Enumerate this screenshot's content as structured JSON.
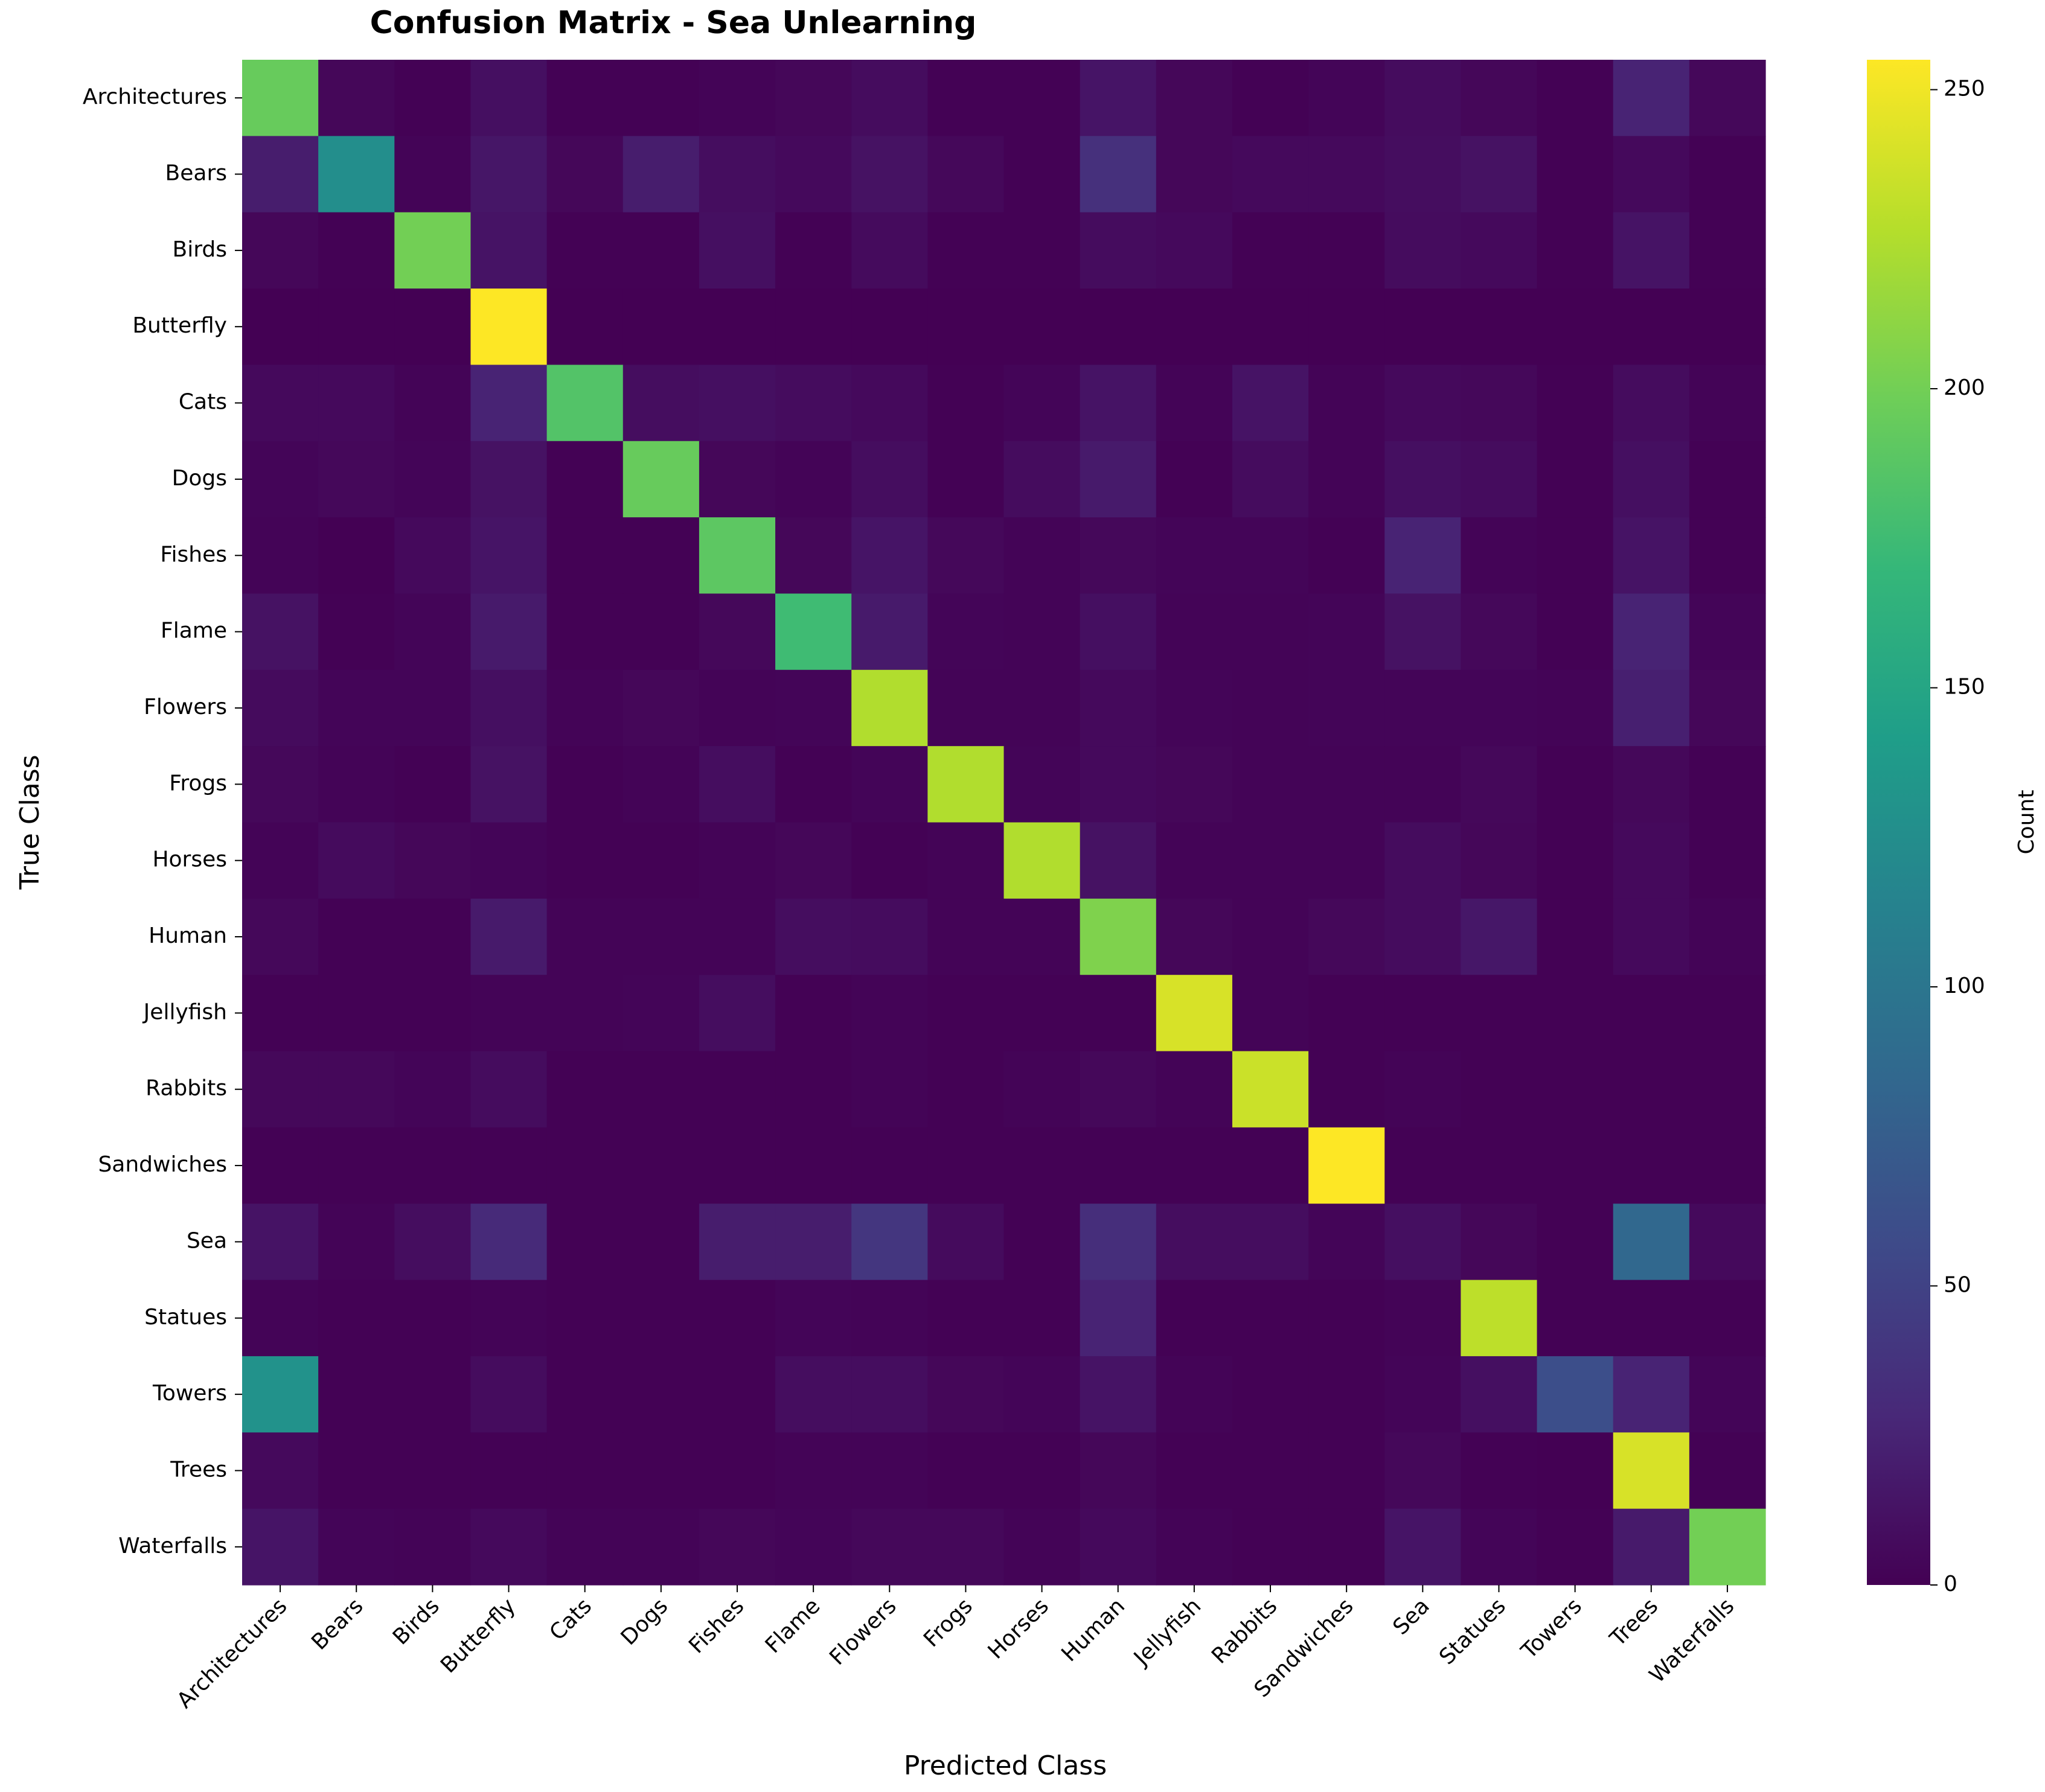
{
  "chart_data": {
    "type": "heatmap",
    "title": "Confusion Matrix - Sea Unlearning",
    "xlabel": "Predicted Class",
    "ylabel": "True Class",
    "colorbar": {
      "label": "Count",
      "range": [
        0,
        255
      ],
      "ticks": [
        "0",
        "50",
        "100",
        "150",
        "200",
        "250"
      ],
      "tick_values": [
        0,
        50,
        100,
        150,
        200,
        250
      ],
      "colormap": "viridis"
    },
    "x_categories": [
      "Architectures",
      "Bears",
      "Birds",
      "Butterfly",
      "Cats",
      "Dogs",
      "Fishes",
      "Flame",
      "Flowers",
      "Frogs",
      "Horses",
      "Human",
      "Jellyfish",
      "Rabbits",
      "Sandwiches",
      "Sea",
      "Statues",
      "Towers",
      "Trees",
      "Waterfalls"
    ],
    "y_categories": [
      "Architectures",
      "Bears",
      "Birds",
      "Butterfly",
      "Cats",
      "Dogs",
      "Fishes",
      "Flame",
      "Flowers",
      "Frogs",
      "Horses",
      "Human",
      "Jellyfish",
      "Rabbits",
      "Sandwiches",
      "Sea",
      "Statues",
      "Towers",
      "Trees",
      "Waterfalls"
    ],
    "matrix": [
      [
        195,
        4,
        1,
        10,
        1,
        1,
        2,
        4,
        8,
        1,
        1,
        14,
        4,
        1,
        3,
        8,
        4,
        1,
        25,
        5
      ],
      [
        20,
        125,
        2,
        15,
        4,
        20,
        9,
        6,
        12,
        5,
        1,
        35,
        4,
        6,
        6,
        9,
        12,
        1,
        6,
        1
      ],
      [
        4,
        1,
        200,
        13,
        1,
        1,
        10,
        1,
        7,
        1,
        1,
        8,
        6,
        1,
        1,
        8,
        6,
        1,
        13,
        1
      ],
      [
        0,
        0,
        0,
        255,
        0,
        0,
        0,
        0,
        0,
        0,
        0,
        0,
        0,
        0,
        0,
        0,
        0,
        0,
        0,
        0
      ],
      [
        6,
        6,
        2,
        25,
        185,
        9,
        10,
        8,
        6,
        1,
        3,
        13,
        2,
        13,
        2,
        6,
        5,
        1,
        8,
        2
      ],
      [
        3,
        5,
        3,
        12,
        1,
        195,
        4,
        2,
        9,
        1,
        8,
        18,
        1,
        8,
        2,
        10,
        8,
        1,
        10,
        1
      ],
      [
        2,
        0,
        6,
        14,
        1,
        1,
        190,
        4,
        14,
        5,
        2,
        5,
        3,
        3,
        1,
        25,
        2,
        1,
        13,
        1
      ],
      [
        12,
        1,
        3,
        18,
        1,
        1,
        5,
        175,
        18,
        3,
        2,
        10,
        2,
        2,
        3,
        12,
        5,
        1,
        25,
        3
      ],
      [
        7,
        3,
        3,
        10,
        2,
        4,
        2,
        3,
        225,
        2,
        2,
        6,
        3,
        2,
        3,
        3,
        3,
        2,
        22,
        4
      ],
      [
        5,
        2,
        1,
        12,
        1,
        2,
        9,
        1,
        3,
        225,
        3,
        6,
        4,
        2,
        2,
        2,
        5,
        1,
        5,
        1
      ],
      [
        2,
        7,
        4,
        3,
        1,
        1,
        2,
        4,
        1,
        2,
        225,
        12,
        2,
        2,
        2,
        8,
        4,
        1,
        6,
        1
      ],
      [
        5,
        1,
        1,
        18,
        2,
        2,
        2,
        9,
        8,
        2,
        2,
        205,
        4,
        2,
        5,
        8,
        16,
        1,
        6,
        2
      ],
      [
        1,
        1,
        1,
        2,
        2,
        3,
        9,
        1,
        2,
        1,
        1,
        1,
        240,
        2,
        1,
        1,
        1,
        1,
        1,
        1
      ],
      [
        5,
        5,
        3,
        8,
        1,
        1,
        1,
        1,
        2,
        1,
        2,
        5,
        2,
        235,
        1,
        2,
        1,
        1,
        1,
        1
      ],
      [
        1,
        1,
        1,
        1,
        1,
        1,
        1,
        1,
        1,
        1,
        1,
        1,
        1,
        1,
        255,
        1,
        1,
        1,
        1,
        1
      ],
      [
        13,
        2,
        9,
        30,
        1,
        1,
        20,
        20,
        40,
        7,
        1,
        33,
        9,
        9,
        3,
        10,
        4,
        1,
        85,
        6
      ],
      [
        2,
        1,
        1,
        2,
        1,
        1,
        1,
        3,
        2,
        1,
        1,
        25,
        1,
        1,
        1,
        2,
        230,
        1,
        1,
        1
      ],
      [
        130,
        1,
        1,
        8,
        1,
        1,
        1,
        9,
        9,
        4,
        3,
        13,
        2,
        1,
        1,
        3,
        10,
        60,
        25,
        3
      ],
      [
        6,
        1,
        1,
        1,
        1,
        1,
        1,
        2,
        2,
        1,
        1,
        4,
        1,
        1,
        1,
        5,
        1,
        0,
        240,
        1
      ],
      [
        14,
        3,
        2,
        6,
        2,
        2,
        4,
        3,
        5,
        5,
        2,
        6,
        2,
        1,
        1,
        14,
        3,
        1,
        18,
        200
      ]
    ]
  }
}
